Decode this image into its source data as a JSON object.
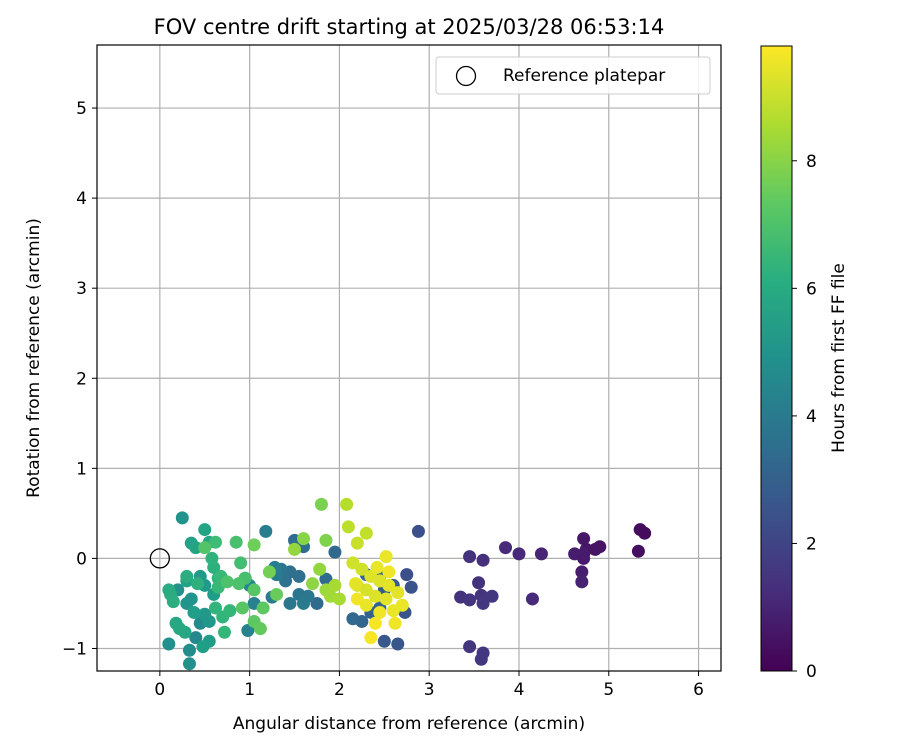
{
  "chart_data": {
    "type": "scatter",
    "title": "FOV centre drift starting at 2025/03/28 06:53:14",
    "xlabel": "Angular distance from reference (arcmin)",
    "ylabel": "Rotation from reference (arcmin)",
    "xlim": [
      -0.7,
      6.25
    ],
    "ylim": [
      -1.25,
      5.7
    ],
    "xticks": [
      0,
      1,
      2,
      3,
      4,
      5,
      6
    ],
    "yticks": [
      -1,
      0,
      1,
      2,
      3,
      4,
      5
    ],
    "grid": true,
    "legend": {
      "entries": [
        "Reference platepar"
      ],
      "placement": "upper right"
    },
    "reference_point": {
      "x": 0,
      "y": 0
    },
    "colorbar": {
      "label": "Hours from first FF file",
      "range": [
        0,
        9.8
      ],
      "ticks": [
        0,
        2,
        4,
        6,
        8
      ],
      "colormap": "viridis"
    },
    "points": [
      [
        5.35,
        0.32,
        0.3
      ],
      [
        5.4,
        0.28,
        0.3
      ],
      [
        5.33,
        0.08,
        0.4
      ],
      [
        4.72,
        0.22,
        0.6
      ],
      [
        4.75,
        0.1,
        0.6
      ],
      [
        4.72,
        0.05,
        0.7
      ],
      [
        4.85,
        0.1,
        0.5
      ],
      [
        4.9,
        0.13,
        0.5
      ],
      [
        4.62,
        0.05,
        0.8
      ],
      [
        4.7,
        -0.15,
        0.8
      ],
      [
        4.7,
        -0.26,
        0.9
      ],
      [
        4.72,
        0.0,
        0.7
      ],
      [
        4.25,
        0.05,
        1.0
      ],
      [
        4.0,
        0.05,
        1.1
      ],
      [
        3.85,
        0.12,
        1.2
      ],
      [
        4.15,
        -0.45,
        1.2
      ],
      [
        3.6,
        -0.02,
        1.3
      ],
      [
        3.45,
        0.02,
        1.4
      ],
      [
        3.35,
        -0.43,
        1.4
      ],
      [
        3.45,
        -0.46,
        1.5
      ],
      [
        3.58,
        -0.41,
        1.5
      ],
      [
        3.55,
        -0.27,
        1.4
      ],
      [
        3.7,
        -0.42,
        1.6
      ],
      [
        3.6,
        -0.5,
        1.6
      ],
      [
        3.45,
        -0.98,
        1.5
      ],
      [
        3.6,
        -1.05,
        1.6
      ],
      [
        3.58,
        -1.12,
        1.6
      ],
      [
        2.88,
        0.3,
        2.4
      ],
      [
        2.75,
        -0.18,
        2.4
      ],
      [
        2.8,
        -0.32,
        2.5
      ],
      [
        2.73,
        -0.6,
        2.5
      ],
      [
        2.65,
        -0.95,
        2.6
      ],
      [
        2.5,
        -0.92,
        2.7
      ],
      [
        2.6,
        -0.3,
        2.8
      ],
      [
        2.5,
        -0.35,
        2.9
      ],
      [
        2.45,
        -0.55,
        3.0
      ],
      [
        2.35,
        -0.6,
        3.1
      ],
      [
        2.25,
        -0.7,
        3.2
      ],
      [
        2.15,
        -0.67,
        3.3
      ],
      [
        2.3,
        -0.18,
        3.2
      ],
      [
        2.45,
        -0.2,
        3.1
      ],
      [
        1.95,
        0.07,
        3.3
      ],
      [
        1.85,
        -0.23,
        3.4
      ],
      [
        1.75,
        -0.5,
        3.4
      ],
      [
        1.6,
        0.13,
        3.5
      ],
      [
        1.5,
        0.2,
        3.5
      ],
      [
        1.55,
        -0.2,
        3.6
      ],
      [
        1.45,
        -0.15,
        3.6
      ],
      [
        1.4,
        -0.25,
        3.7
      ],
      [
        1.35,
        -0.12,
        3.8
      ],
      [
        1.55,
        -0.4,
        3.8
      ],
      [
        1.65,
        -0.42,
        3.9
      ],
      [
        1.45,
        -0.5,
        3.9
      ],
      [
        1.6,
        -0.5,
        4.0
      ],
      [
        1.3,
        -0.18,
        4.0
      ],
      [
        1.25,
        -0.43,
        4.1
      ],
      [
        1.18,
        0.3,
        4.2
      ],
      [
        1.28,
        -0.1,
        4.2
      ],
      [
        1.05,
        -0.5,
        4.3
      ],
      [
        0.98,
        -0.8,
        4.4
      ],
      [
        1.0,
        -0.3,
        4.5
      ],
      [
        0.95,
        -0.22,
        4.5
      ],
      [
        0.4,
        -0.88,
        4.6
      ],
      [
        0.45,
        -0.72,
        4.7
      ],
      [
        0.33,
        -1.02,
        4.8
      ],
      [
        0.1,
        -0.95,
        4.9
      ],
      [
        0.33,
        -1.17,
        4.9
      ],
      [
        0.25,
        0.45,
        5.0
      ],
      [
        0.2,
        -0.35,
        5.0
      ],
      [
        0.3,
        -0.5,
        5.1
      ],
      [
        0.35,
        -0.45,
        5.1
      ],
      [
        0.5,
        -0.62,
        5.2
      ],
      [
        0.55,
        -0.7,
        5.2
      ],
      [
        0.45,
        -0.2,
        5.3
      ],
      [
        0.5,
        -0.3,
        5.3
      ],
      [
        0.6,
        -0.4,
        5.4
      ],
      [
        0.55,
        -0.92,
        5.4
      ],
      [
        0.48,
        -0.98,
        5.5
      ],
      [
        0.38,
        -0.6,
        5.5
      ],
      [
        0.3,
        -0.25,
        5.6
      ],
      [
        0.35,
        0.17,
        5.6
      ],
      [
        0.4,
        0.12,
        5.7
      ],
      [
        0.5,
        0.32,
        5.7
      ],
      [
        0.55,
        0.18,
        5.8
      ],
      [
        0.28,
        -0.82,
        5.8
      ],
      [
        0.22,
        -0.78,
        5.9
      ],
      [
        0.18,
        -0.72,
        5.9
      ],
      [
        0.12,
        -0.4,
        6.0
      ],
      [
        0.1,
        -0.35,
        6.0
      ],
      [
        0.15,
        -0.48,
        6.1
      ],
      [
        0.3,
        -0.2,
        6.1
      ],
      [
        0.42,
        -0.28,
        6.2
      ],
      [
        0.6,
        -0.1,
        6.2
      ],
      [
        0.65,
        -0.22,
        6.3
      ],
      [
        0.58,
        0.0,
        6.3
      ],
      [
        0.62,
        -0.55,
        6.4
      ],
      [
        0.7,
        -0.65,
        6.4
      ],
      [
        0.78,
        -0.58,
        6.5
      ],
      [
        0.72,
        -0.82,
        6.5
      ],
      [
        0.65,
        -0.32,
        6.6
      ],
      [
        0.68,
        -0.2,
        6.6
      ],
      [
        0.62,
        0.18,
        6.7
      ],
      [
        0.9,
        -0.05,
        6.8
      ],
      [
        0.85,
        0.18,
        6.9
      ],
      [
        0.95,
        -0.22,
        6.9
      ],
      [
        0.75,
        -0.26,
        7.0
      ],
      [
        0.88,
        -0.28,
        7.0
      ],
      [
        0.5,
        0.12,
        7.1
      ],
      [
        1.05,
        -0.35,
        7.2
      ],
      [
        0.92,
        -0.55,
        7.2
      ],
      [
        1.05,
        -0.7,
        7.3
      ],
      [
        1.15,
        -0.55,
        7.3
      ],
      [
        1.12,
        -0.78,
        7.4
      ],
      [
        1.3,
        -0.4,
        7.5
      ],
      [
        1.05,
        0.15,
        7.6
      ],
      [
        1.22,
        -0.15,
        7.7
      ],
      [
        1.8,
        0.6,
        7.8
      ],
      [
        1.85,
        0.2,
        7.9
      ],
      [
        1.6,
        0.22,
        8.0
      ],
      [
        1.7,
        -0.28,
        8.1
      ],
      [
        1.78,
        -0.12,
        8.2
      ],
      [
        1.5,
        0.1,
        8.2
      ],
      [
        1.85,
        -0.35,
        8.3
      ],
      [
        1.9,
        -0.42,
        8.4
      ],
      [
        2.0,
        -0.45,
        8.5
      ],
      [
        1.95,
        -0.3,
        8.5
      ],
      [
        2.08,
        0.6,
        8.7
      ],
      [
        2.1,
        0.35,
        8.8
      ],
      [
        2.3,
        0.28,
        8.9
      ],
      [
        2.2,
        0.17,
        9.0
      ],
      [
        2.15,
        -0.05,
        9.1
      ],
      [
        2.25,
        -0.12,
        9.1
      ],
      [
        2.2,
        -0.3,
        9.2
      ],
      [
        2.3,
        -0.35,
        9.2
      ],
      [
        2.35,
        -0.2,
        9.3
      ],
      [
        2.45,
        -0.25,
        9.3
      ],
      [
        2.4,
        -0.42,
        9.3
      ],
      [
        2.52,
        -0.45,
        9.4
      ],
      [
        2.55,
        -0.3,
        9.4
      ],
      [
        2.65,
        -0.38,
        9.4
      ],
      [
        2.7,
        -0.52,
        9.5
      ],
      [
        2.6,
        -0.58,
        9.5
      ],
      [
        2.52,
        0.02,
        9.5
      ],
      [
        2.55,
        -0.15,
        9.6
      ],
      [
        2.45,
        -0.6,
        9.6
      ],
      [
        2.4,
        -0.72,
        9.7
      ],
      [
        2.35,
        -0.88,
        9.7
      ],
      [
        2.62,
        -0.72,
        9.6
      ],
      [
        2.2,
        -0.45,
        9.6
      ],
      [
        2.3,
        -0.52,
        9.5
      ],
      [
        2.18,
        -0.28,
        9.4
      ],
      [
        2.42,
        -0.1,
        9.5
      ]
    ]
  }
}
